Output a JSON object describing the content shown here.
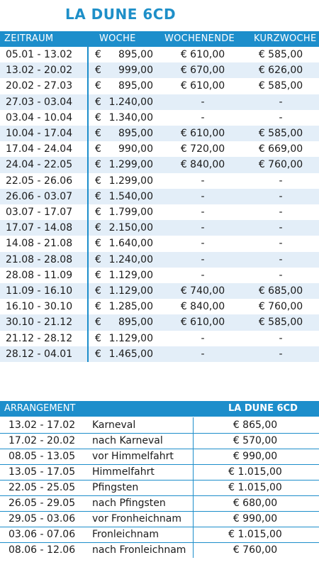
{
  "title": "LA DUNE 6CD",
  "table1": {
    "headers": {
      "period": "ZEITRAUM",
      "week": "WOCHE",
      "weekend": "WOCHENENDE",
      "shortweek": "KURZWOCHE"
    },
    "euro_sign": "€",
    "rows": [
      {
        "period": "05.01 - 13.02",
        "week": "895,00",
        "weekend": "€ 610,00",
        "shortweek": "€ 585,00"
      },
      {
        "period": "13.02 - 20.02",
        "week": "999,00",
        "weekend": "€ 670,00",
        "shortweek": "€ 626,00"
      },
      {
        "period": "20.02 - 27.03",
        "week": "895,00",
        "weekend": "€ 610,00",
        "shortweek": "€ 585,00"
      },
      {
        "period": "27.03 - 03.04",
        "week": "1.240,00",
        "weekend": "-",
        "shortweek": "-"
      },
      {
        "period": "03.04 - 10.04",
        "week": "1.340,00",
        "weekend": "-",
        "shortweek": "-"
      },
      {
        "period": "10.04 - 17.04",
        "week": "895,00",
        "weekend": "€ 610,00",
        "shortweek": "€ 585,00"
      },
      {
        "period": "17.04 - 24.04",
        "week": "990,00",
        "weekend": "€ 720,00",
        "shortweek": "€ 669,00"
      },
      {
        "period": "24.04 - 22.05",
        "week": "1.299,00",
        "weekend": "€ 840,00",
        "shortweek": "€ 760,00"
      },
      {
        "period": "22.05 - 26.06",
        "week": "1.299,00",
        "weekend": "-",
        "shortweek": "-"
      },
      {
        "period": "26.06 - 03.07",
        "week": "1.540,00",
        "weekend": "-",
        "shortweek": "-"
      },
      {
        "period": "03.07 - 17.07",
        "week": "1.799,00",
        "weekend": "-",
        "shortweek": "-"
      },
      {
        "period": "17.07 - 14.08",
        "week": "2.150,00",
        "weekend": "-",
        "shortweek": "-"
      },
      {
        "period": "14.08 - 21.08",
        "week": "1.640,00",
        "weekend": "-",
        "shortweek": "-"
      },
      {
        "period": "21.08 - 28.08",
        "week": "1.240,00",
        "weekend": "-",
        "shortweek": "-"
      },
      {
        "period": "28.08 - 11.09",
        "week": "1.129,00",
        "weekend": "-",
        "shortweek": "-"
      },
      {
        "period": "11.09 - 16.10",
        "week": "1.129,00",
        "weekend": "€ 740,00",
        "shortweek": "€ 685,00"
      },
      {
        "period": "16.10 - 30.10",
        "week": "1.285,00",
        "weekend": "€ 840,00",
        "shortweek": "€ 760,00"
      },
      {
        "period": "30.10 - 21.12",
        "week": "895,00",
        "weekend": "€ 610,00",
        "shortweek": "€ 585,00"
      },
      {
        "period": "21.12 - 28.12",
        "week": "1.129,00",
        "weekend": "-",
        "shortweek": "-"
      },
      {
        "period": "28.12 - 04.01",
        "week": "1.465,00",
        "weekend": "-",
        "shortweek": "-"
      }
    ]
  },
  "table2": {
    "headers": {
      "arrangement": "ARRANGEMENT",
      "property": "LA DUNE 6CD"
    },
    "rows": [
      {
        "period": "13.02 - 17.02",
        "name": "Karneval",
        "price": "€ 865,00"
      },
      {
        "period": "17.02 - 20.02",
        "name": "nach Karneval",
        "price": "€ 570,00"
      },
      {
        "period": "08.05 - 13.05",
        "name": "vor Himmelfahrt",
        "price": "€ 990,00"
      },
      {
        "period": "13.05 - 17.05",
        "name": "Himmelfahrt",
        "price": "€ 1.015,00"
      },
      {
        "period": "22.05 - 25.05",
        "name": "Pfingsten",
        "price": "€ 1.015,00"
      },
      {
        "period": "26.05 - 29.05",
        "name": "nach Pfingsten",
        "price": "€ 680,00"
      },
      {
        "period": "29.05 - 03.06",
        "name": "vor Fronheichnam",
        "price": "€ 990,00"
      },
      {
        "period": "03.06 - 07.06",
        "name": "Fronleichnam",
        "price": "€ 1.015,00"
      },
      {
        "period": "08.06 - 12.06",
        "name": "nach Fronleichnam",
        "price": "€ 760,00"
      }
    ]
  },
  "colors": {
    "accent": "#1d8ecb",
    "title": "#1e8fc8",
    "shade": "#e3eef8"
  }
}
